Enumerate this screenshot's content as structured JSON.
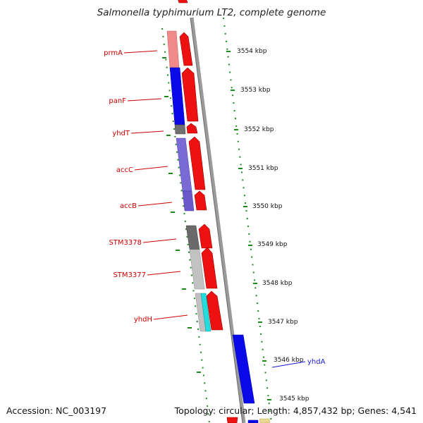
{
  "title": "Salmonella typhimurium LT2, complete genome",
  "footer": {
    "accession": "Accession: NC_003197",
    "summary": "Topology: circular; Length: 4,857,432 bp; Genes: 4,541"
  },
  "colors": {
    "label_red": "#cc0000",
    "label_blue": "#1a1acc",
    "cds_red": "#ee1111",
    "tick_green": "#1a8a1a",
    "backbone_grey": "#8c8c8c"
  },
  "gene_labels": [
    {
      "name": "prmA",
      "color": "red"
    },
    {
      "name": "panF",
      "color": "red"
    },
    {
      "name": "yhdT",
      "color": "red"
    },
    {
      "name": "accC",
      "color": "red"
    },
    {
      "name": "accB",
      "color": "red"
    },
    {
      "name": "STM3378",
      "color": "red"
    },
    {
      "name": "STM3377",
      "color": "red"
    },
    {
      "name": "yhdH",
      "color": "red"
    },
    {
      "name": "yhdA",
      "color": "blue"
    }
  ],
  "scale_ticks": [
    "3554 kbp",
    "3553 kbp",
    "3552 kbp",
    "3551 kbp",
    "3550 kbp",
    "3549 kbp",
    "3548 kbp",
    "3547 kbp",
    "3546 kbp",
    "3545 kbp"
  ]
}
